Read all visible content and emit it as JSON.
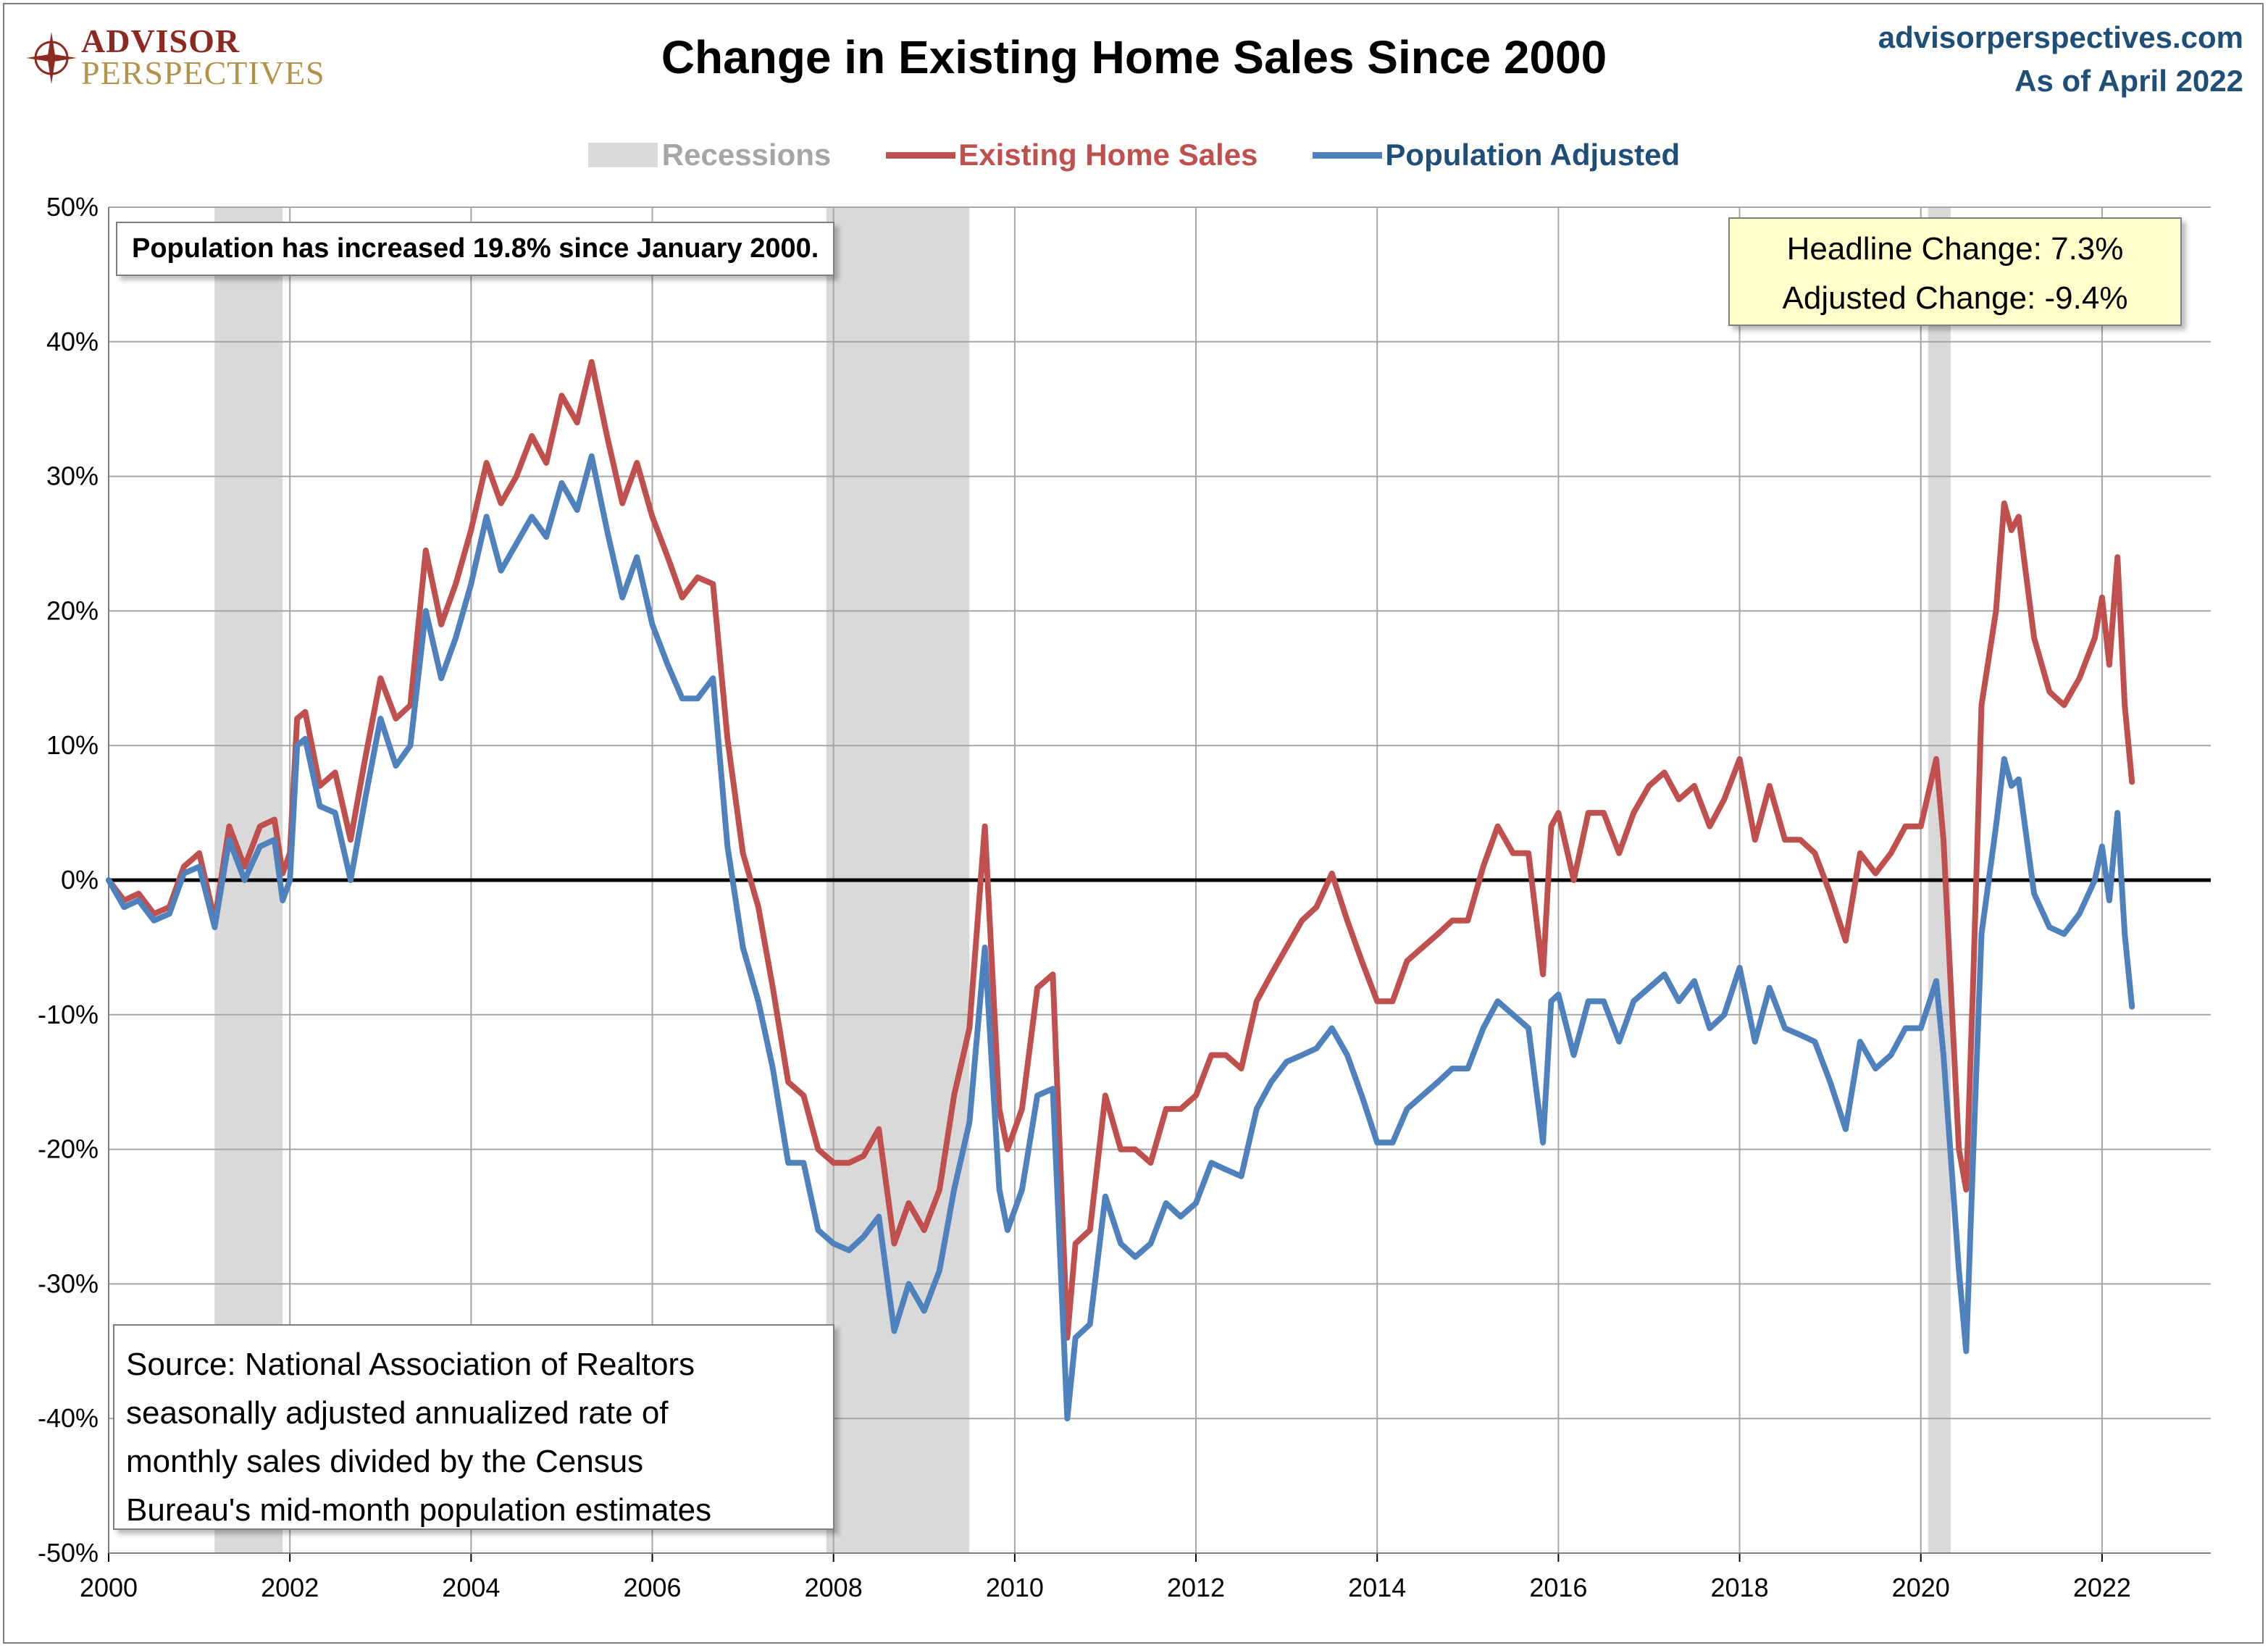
{
  "header": {
    "logo_line1": "ADVISOR",
    "logo_line2": "PERSPECTIVES",
    "site": "advisorperspectives.com",
    "as_of": "As of April 2022"
  },
  "notes": {
    "population": "Population has increased 19.8% since January 2000.",
    "headline_change": "Headline Change: 7.3%",
    "adjusted_change": "Adjusted Change: -9.4%",
    "source_lines": [
      "Source: National Association of Realtors",
      "seasonally adjusted annualized rate of",
      "monthly sales divided by the Census",
      "Bureau's mid-month population estimates"
    ]
  },
  "chart_data": {
    "type": "line",
    "title": "Change in Existing Home Sales Since 2000",
    "xlabel": "",
    "ylabel": "",
    "xlim": [
      2000,
      2023.2
    ],
    "ylim": [
      -50,
      50
    ],
    "x_ticks": [
      "2000",
      "2002",
      "2004",
      "2006",
      "2008",
      "2010",
      "2012",
      "2014",
      "2016",
      "2018",
      "2020",
      "2022"
    ],
    "y_ticks": [
      "50%",
      "40%",
      "30%",
      "20%",
      "10%",
      "0%",
      "-10%",
      "-20%",
      "-30%",
      "-40%",
      "-50%"
    ],
    "grid": true,
    "legend_position": "top-center",
    "recessions": [
      {
        "label": "Recessions",
        "start": 2001.17,
        "end": 2001.92
      },
      {
        "label": "Recessions",
        "start": 2007.92,
        "end": 2009.5
      },
      {
        "label": "Recessions",
        "start": 2020.08,
        "end": 2020.33
      }
    ],
    "colors": {
      "recession": "#d9d9d9",
      "existing": "#c0504d",
      "adjusted": "#4f81bd",
      "zero_line": "#000000",
      "grid": "#a6a6a6"
    },
    "legend": [
      "Recessions",
      "Existing Home Sales",
      "Population Adjusted"
    ],
    "series": [
      {
        "name": "Existing Home Sales",
        "points": [
          [
            2000.0,
            0
          ],
          [
            2000.17,
            -1.5
          ],
          [
            2000.33,
            -1
          ],
          [
            2000.5,
            -2.5
          ],
          [
            2000.67,
            -2
          ],
          [
            2000.83,
            1
          ],
          [
            2001.0,
            2
          ],
          [
            2001.17,
            -3
          ],
          [
            2001.33,
            4
          ],
          [
            2001.5,
            1
          ],
          [
            2001.67,
            4
          ],
          [
            2001.83,
            4.5
          ],
          [
            2001.92,
            0.5
          ],
          [
            2002.0,
            2
          ],
          [
            2002.08,
            12
          ],
          [
            2002.17,
            12.5
          ],
          [
            2002.33,
            7
          ],
          [
            2002.5,
            8
          ],
          [
            2002.67,
            3
          ],
          [
            2002.83,
            9
          ],
          [
            2003.0,
            15
          ],
          [
            2003.17,
            12
          ],
          [
            2003.33,
            13
          ],
          [
            2003.5,
            24.5
          ],
          [
            2003.67,
            19
          ],
          [
            2003.83,
            22
          ],
          [
            2004.0,
            26
          ],
          [
            2004.17,
            31
          ],
          [
            2004.33,
            28
          ],
          [
            2004.5,
            30
          ],
          [
            2004.67,
            33
          ],
          [
            2004.83,
            31
          ],
          [
            2005.0,
            36
          ],
          [
            2005.17,
            34
          ],
          [
            2005.33,
            38.5
          ],
          [
            2005.5,
            33
          ],
          [
            2005.67,
            28
          ],
          [
            2005.83,
            31
          ],
          [
            2006.0,
            27
          ],
          [
            2006.17,
            24
          ],
          [
            2006.33,
            21
          ],
          [
            2006.5,
            22.5
          ],
          [
            2006.67,
            22
          ],
          [
            2006.83,
            10.5
          ],
          [
            2007.0,
            2
          ],
          [
            2007.17,
            -2
          ],
          [
            2007.33,
            -8
          ],
          [
            2007.5,
            -15
          ],
          [
            2007.67,
            -16
          ],
          [
            2007.83,
            -20
          ],
          [
            2008.0,
            -21
          ],
          [
            2008.17,
            -21
          ],
          [
            2008.33,
            -20.5
          ],
          [
            2008.5,
            -18.5
          ],
          [
            2008.67,
            -27
          ],
          [
            2008.83,
            -24
          ],
          [
            2009.0,
            -26
          ],
          [
            2009.17,
            -23
          ],
          [
            2009.33,
            -16
          ],
          [
            2009.5,
            -11
          ],
          [
            2009.67,
            4
          ],
          [
            2009.83,
            -17
          ],
          [
            2009.92,
            -20
          ],
          [
            2010.08,
            -17
          ],
          [
            2010.25,
            -8
          ],
          [
            2010.42,
            -7
          ],
          [
            2010.58,
            -34
          ],
          [
            2010.67,
            -27
          ],
          [
            2010.83,
            -26
          ],
          [
            2011.0,
            -16
          ],
          [
            2011.17,
            -20
          ],
          [
            2011.33,
            -20
          ],
          [
            2011.5,
            -21
          ],
          [
            2011.67,
            -17
          ],
          [
            2011.83,
            -17
          ],
          [
            2012.0,
            -16
          ],
          [
            2012.17,
            -13
          ],
          [
            2012.33,
            -13
          ],
          [
            2012.5,
            -14
          ],
          [
            2012.67,
            -9
          ],
          [
            2012.83,
            -7
          ],
          [
            2013.0,
            -5
          ],
          [
            2013.17,
            -3
          ],
          [
            2013.33,
            -2
          ],
          [
            2013.5,
            0.5
          ],
          [
            2013.67,
            -3
          ],
          [
            2013.83,
            -6
          ],
          [
            2014.0,
            -9
          ],
          [
            2014.17,
            -9
          ],
          [
            2014.33,
            -6
          ],
          [
            2014.5,
            -5
          ],
          [
            2014.67,
            -4
          ],
          [
            2014.83,
            -3
          ],
          [
            2015.0,
            -3
          ],
          [
            2015.17,
            1
          ],
          [
            2015.33,
            4
          ],
          [
            2015.5,
            2
          ],
          [
            2015.67,
            2
          ],
          [
            2015.83,
            -7
          ],
          [
            2015.92,
            4
          ],
          [
            2016.0,
            5
          ],
          [
            2016.17,
            0
          ],
          [
            2016.33,
            5
          ],
          [
            2016.5,
            5
          ],
          [
            2016.67,
            2
          ],
          [
            2016.83,
            5
          ],
          [
            2017.0,
            7
          ],
          [
            2017.17,
            8
          ],
          [
            2017.33,
            6
          ],
          [
            2017.5,
            7
          ],
          [
            2017.67,
            4
          ],
          [
            2017.83,
            6
          ],
          [
            2018.0,
            9
          ],
          [
            2018.17,
            3
          ],
          [
            2018.33,
            7
          ],
          [
            2018.5,
            3
          ],
          [
            2018.67,
            3
          ],
          [
            2018.83,
            2
          ],
          [
            2019.0,
            -1
          ],
          [
            2019.17,
            -4.5
          ],
          [
            2019.33,
            2
          ],
          [
            2019.5,
            0.5
          ],
          [
            2019.67,
            2
          ],
          [
            2019.83,
            4
          ],
          [
            2020.0,
            4
          ],
          [
            2020.17,
            9
          ],
          [
            2020.25,
            3
          ],
          [
            2020.42,
            -20
          ],
          [
            2020.5,
            -23
          ],
          [
            2020.58,
            -7
          ],
          [
            2020.67,
            13
          ],
          [
            2020.83,
            20
          ],
          [
            2020.92,
            28
          ],
          [
            2021.0,
            26
          ],
          [
            2021.08,
            27
          ],
          [
            2021.25,
            18
          ],
          [
            2021.42,
            14
          ],
          [
            2021.58,
            13
          ],
          [
            2021.75,
            15
          ],
          [
            2021.92,
            18
          ],
          [
            2022.0,
            21
          ],
          [
            2022.08,
            16
          ],
          [
            2022.17,
            24
          ],
          [
            2022.25,
            13
          ],
          [
            2022.33,
            7.3
          ]
        ]
      },
      {
        "name": "Population Adjusted",
        "points": [
          [
            2000.0,
            0
          ],
          [
            2000.17,
            -2
          ],
          [
            2000.33,
            -1.5
          ],
          [
            2000.5,
            -3
          ],
          [
            2000.67,
            -2.5
          ],
          [
            2000.83,
            0.5
          ],
          [
            2001.0,
            1
          ],
          [
            2001.17,
            -3.5
          ],
          [
            2001.33,
            3
          ],
          [
            2001.5,
            0
          ],
          [
            2001.67,
            2.5
          ],
          [
            2001.83,
            3
          ],
          [
            2001.92,
            -1.5
          ],
          [
            2002.0,
            0
          ],
          [
            2002.08,
            10
          ],
          [
            2002.17,
            10.5
          ],
          [
            2002.33,
            5.5
          ],
          [
            2002.5,
            5
          ],
          [
            2002.67,
            0
          ],
          [
            2002.83,
            6
          ],
          [
            2003.0,
            12
          ],
          [
            2003.17,
            8.5
          ],
          [
            2003.33,
            10
          ],
          [
            2003.5,
            20
          ],
          [
            2003.67,
            15
          ],
          [
            2003.83,
            18
          ],
          [
            2004.0,
            22
          ],
          [
            2004.17,
            27
          ],
          [
            2004.33,
            23
          ],
          [
            2004.5,
            25
          ],
          [
            2004.67,
            27
          ],
          [
            2004.83,
            25.5
          ],
          [
            2005.0,
            29.5
          ],
          [
            2005.17,
            27.5
          ],
          [
            2005.33,
            31.5
          ],
          [
            2005.5,
            26
          ],
          [
            2005.67,
            21
          ],
          [
            2005.83,
            24
          ],
          [
            2006.0,
            19
          ],
          [
            2006.17,
            16
          ],
          [
            2006.33,
            13.5
          ],
          [
            2006.5,
            13.5
          ],
          [
            2006.67,
            15
          ],
          [
            2006.83,
            2.5
          ],
          [
            2007.0,
            -5
          ],
          [
            2007.17,
            -9
          ],
          [
            2007.33,
            -14
          ],
          [
            2007.5,
            -21
          ],
          [
            2007.67,
            -21
          ],
          [
            2007.83,
            -26
          ],
          [
            2008.0,
            -27
          ],
          [
            2008.17,
            -27.5
          ],
          [
            2008.33,
            -26.5
          ],
          [
            2008.5,
            -25
          ],
          [
            2008.67,
            -33.5
          ],
          [
            2008.83,
            -30
          ],
          [
            2009.0,
            -32
          ],
          [
            2009.17,
            -29
          ],
          [
            2009.33,
            -23
          ],
          [
            2009.5,
            -18
          ],
          [
            2009.67,
            -5
          ],
          [
            2009.83,
            -23
          ],
          [
            2009.92,
            -26
          ],
          [
            2010.08,
            -23
          ],
          [
            2010.25,
            -16
          ],
          [
            2010.42,
            -15.5
          ],
          [
            2010.58,
            -40
          ],
          [
            2010.67,
            -34
          ],
          [
            2010.83,
            -33
          ],
          [
            2011.0,
            -23.5
          ],
          [
            2011.17,
            -27
          ],
          [
            2011.33,
            -28
          ],
          [
            2011.5,
            -27
          ],
          [
            2011.67,
            -24
          ],
          [
            2011.83,
            -25
          ],
          [
            2012.0,
            -24
          ],
          [
            2012.17,
            -21
          ],
          [
            2012.33,
            -21.5
          ],
          [
            2012.5,
            -22
          ],
          [
            2012.67,
            -17
          ],
          [
            2012.83,
            -15
          ],
          [
            2013.0,
            -13.5
          ],
          [
            2013.17,
            -13
          ],
          [
            2013.33,
            -12.5
          ],
          [
            2013.5,
            -11
          ],
          [
            2013.67,
            -13
          ],
          [
            2013.83,
            -16
          ],
          [
            2014.0,
            -19.5
          ],
          [
            2014.17,
            -19.5
          ],
          [
            2014.33,
            -17
          ],
          [
            2014.5,
            -16
          ],
          [
            2014.67,
            -15
          ],
          [
            2014.83,
            -14
          ],
          [
            2015.0,
            -14
          ],
          [
            2015.17,
            -11
          ],
          [
            2015.33,
            -9
          ],
          [
            2015.5,
            -10
          ],
          [
            2015.67,
            -11
          ],
          [
            2015.83,
            -19.5
          ],
          [
            2015.92,
            -9
          ],
          [
            2016.0,
            -8.5
          ],
          [
            2016.17,
            -13
          ],
          [
            2016.33,
            -9
          ],
          [
            2016.5,
            -9
          ],
          [
            2016.67,
            -12
          ],
          [
            2016.83,
            -9
          ],
          [
            2017.0,
            -8
          ],
          [
            2017.17,
            -7
          ],
          [
            2017.33,
            -9
          ],
          [
            2017.5,
            -7.5
          ],
          [
            2017.67,
            -11
          ],
          [
            2017.83,
            -10
          ],
          [
            2018.0,
            -6.5
          ],
          [
            2018.17,
            -12
          ],
          [
            2018.33,
            -8
          ],
          [
            2018.5,
            -11
          ],
          [
            2018.67,
            -11.5
          ],
          [
            2018.83,
            -12
          ],
          [
            2019.0,
            -15
          ],
          [
            2019.17,
            -18.5
          ],
          [
            2019.33,
            -12
          ],
          [
            2019.5,
            -14
          ],
          [
            2019.67,
            -13
          ],
          [
            2019.83,
            -11
          ],
          [
            2020.0,
            -11
          ],
          [
            2020.17,
            -7.5
          ],
          [
            2020.25,
            -13
          ],
          [
            2020.42,
            -29
          ],
          [
            2020.5,
            -35
          ],
          [
            2020.58,
            -20
          ],
          [
            2020.67,
            -4
          ],
          [
            2020.83,
            4
          ],
          [
            2020.92,
            9
          ],
          [
            2021.0,
            7
          ],
          [
            2021.08,
            7.5
          ],
          [
            2021.25,
            -1
          ],
          [
            2021.42,
            -3.5
          ],
          [
            2021.58,
            -4
          ],
          [
            2021.75,
            -2.5
          ],
          [
            2021.92,
            0
          ],
          [
            2022.0,
            2.5
          ],
          [
            2022.08,
            -1.5
          ],
          [
            2022.17,
            5
          ],
          [
            2022.25,
            -4
          ],
          [
            2022.33,
            -9.4
          ]
        ]
      }
    ]
  }
}
